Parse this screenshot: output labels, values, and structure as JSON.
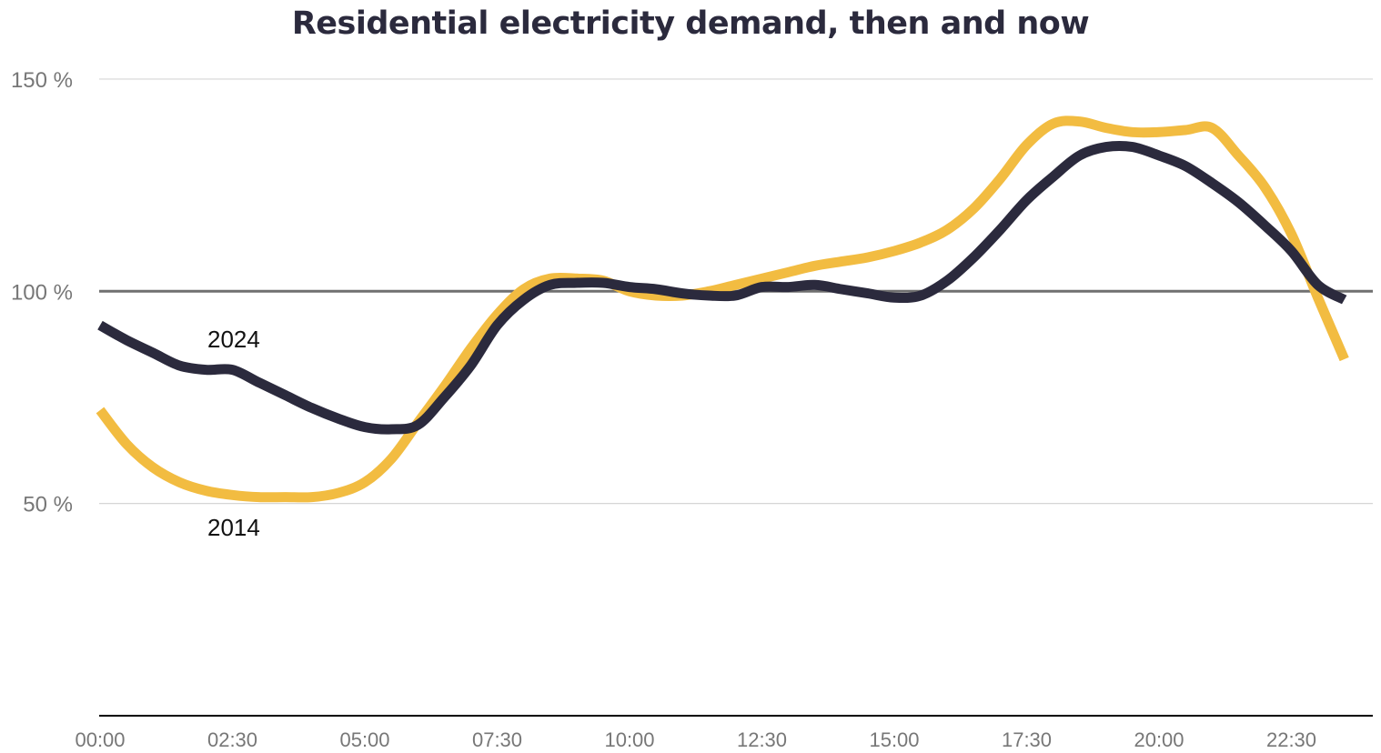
{
  "chart_data": {
    "type": "line",
    "title": "Residential electricity demand, then and now",
    "xlabel": "",
    "ylabel": "",
    "ylim": [
      0,
      150
    ],
    "y_ticks": [
      {
        "value": 50,
        "label": "50 %"
      },
      {
        "value": 100,
        "label": "100 %"
      },
      {
        "value": 150,
        "label": "150 %"
      }
    ],
    "x_ticks": [
      "00:00",
      "02:30",
      "05:00",
      "07:30",
      "10:00",
      "12:30",
      "15:00",
      "17:30",
      "20:00",
      "22:30"
    ],
    "x_unit": "hours",
    "reference_line": 100,
    "series": [
      {
        "name": "2014",
        "color": "#f2bc41",
        "x": [
          0,
          0.5,
          1,
          1.5,
          2,
          2.5,
          3,
          3.5,
          4,
          4.5,
          5,
          5.5,
          6,
          6.5,
          7,
          7.5,
          8,
          8.5,
          9,
          9.5,
          10,
          10.5,
          11,
          11.5,
          12,
          12.5,
          13,
          13.5,
          14,
          14.5,
          15,
          15.5,
          16,
          16.5,
          17,
          17.5,
          18,
          18.5,
          19,
          19.5,
          20,
          20.5,
          21,
          21.5,
          22,
          22.5,
          23,
          23.5
        ],
        "values": [
          72,
          64,
          58.5,
          55,
          53,
          52,
          51.5,
          51.5,
          51.5,
          52.5,
          55,
          60.5,
          69,
          77.5,
          86.5,
          94.5,
          100.5,
          103,
          103,
          102.5,
          100,
          99,
          99,
          100,
          101.5,
          103,
          104.5,
          106,
          107,
          108,
          109.5,
          111.5,
          114.5,
          119.5,
          126.5,
          134.5,
          139.5,
          140,
          138.5,
          137.5,
          137.5,
          138,
          138.5,
          132,
          124.5,
          113.5,
          98.5,
          84
        ]
      },
      {
        "name": "2024",
        "color": "#2b2a3d",
        "x": [
          0,
          0.5,
          1,
          1.5,
          2,
          2.5,
          3,
          3.5,
          4,
          4.5,
          5,
          5.5,
          6,
          6.5,
          7,
          7.5,
          8,
          8.5,
          9,
          9.5,
          10,
          10.5,
          11,
          11.5,
          12,
          12.5,
          13,
          13.5,
          14,
          14.5,
          15,
          15.5,
          16,
          16.5,
          17,
          17.5,
          18,
          18.5,
          19,
          19.5,
          20,
          20.5,
          21,
          21.5,
          22,
          22.5,
          23,
          23.5
        ],
        "values": [
          92,
          88.5,
          85.5,
          82.5,
          81.5,
          81.5,
          78.5,
          75.5,
          72.5,
          70,
          68,
          67.5,
          68.5,
          75,
          82.5,
          92,
          98,
          101.5,
          102,
          102,
          101,
          100.5,
          99.5,
          99,
          99,
          101,
          101,
          101.5,
          100.5,
          99.5,
          98.5,
          99,
          102.5,
          108,
          114.5,
          121.5,
          127,
          132,
          134,
          134,
          132,
          129.5,
          125.5,
          121,
          115.5,
          109.5,
          101.5,
          98
        ]
      }
    ],
    "annotations": [
      {
        "text": "2024",
        "series": "2024"
      },
      {
        "text": "2014",
        "series": "2014"
      }
    ],
    "grid": true
  }
}
